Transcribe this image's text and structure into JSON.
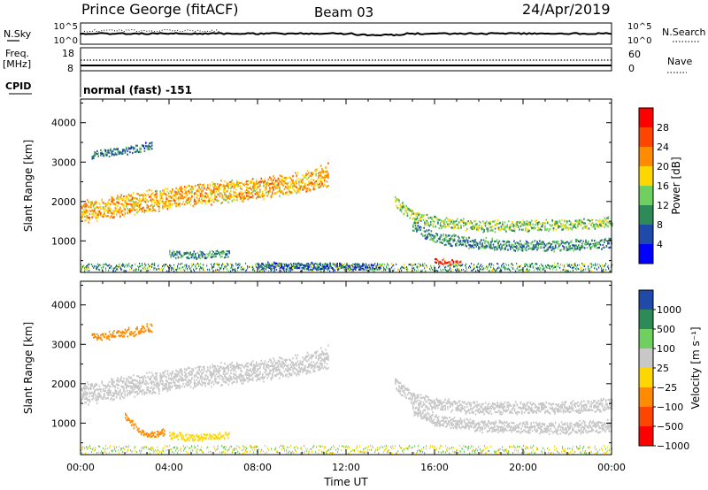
{
  "header": {
    "station": "Prince George (fitACF)",
    "beam": "Beam 03",
    "date": "24/Apr/2019"
  },
  "status_panels": {
    "nsky_label": "N.Sky",
    "nsky_ticks": [
      "10^5",
      "10^0"
    ],
    "nsearch_label": "N.Search",
    "nsearch_ticks": [
      "10^5",
      "10^0"
    ],
    "freq_label": "Freq.",
    "freq_unit": "[MHz]",
    "freq_ticks": [
      "18",
      "8"
    ],
    "nave_label": "Nave",
    "nave_ticks": [
      "60",
      "0"
    ],
    "cpid_label": "CPID",
    "cpid_text": "normal (fast) -151"
  },
  "chart_data": [
    {
      "type": "heatmap",
      "name": "power",
      "ylabel": "Slant Range [km]",
      "ylim": [
        200,
        4600
      ],
      "yticks": [
        1000,
        2000,
        3000,
        4000
      ],
      "xlim": [
        0,
        24
      ],
      "xticks": [
        "00:00",
        "04:00",
        "08:00",
        "12:00",
        "16:00",
        "20:00",
        "00:00"
      ],
      "colorbar": {
        "label": "Power [dB]",
        "ticks": [
          "28",
          "24",
          "20",
          "16",
          "12",
          "8",
          "4"
        ],
        "colors": [
          "#0000ff",
          "#1f4aa8",
          "#2e8b57",
          "#6fcf5f",
          "#ffd700",
          "#ff8c00",
          "#ff4500",
          "#ff0000"
        ]
      },
      "features": [
        {
          "kind": "band",
          "t": [
            0,
            2,
            4,
            6,
            8,
            10,
            11.2
          ],
          "r": [
            1750,
            1950,
            2100,
            2250,
            2350,
            2500,
            2700
          ],
          "width": 380,
          "level": 20
        },
        {
          "kind": "band",
          "t": [
            14.2,
            15,
            16,
            18,
            20,
            22,
            24
          ],
          "r": [
            2000,
            1650,
            1500,
            1400,
            1400,
            1420,
            1500
          ],
          "width": 200,
          "level": 14
        },
        {
          "kind": "band",
          "t": [
            15,
            16,
            18,
            20,
            22,
            24
          ],
          "r": [
            1400,
            1100,
            950,
            900,
            900,
            950
          ],
          "width": 200,
          "level": 10
        },
        {
          "kind": "band",
          "t": [
            0.5,
            1.5,
            2.5,
            3.2
          ],
          "r": [
            3200,
            3280,
            3350,
            3450
          ],
          "width": 150,
          "level": 8
        },
        {
          "kind": "band",
          "t": [
            4,
            5,
            6,
            6.7
          ],
          "r": [
            700,
            650,
            680,
            700
          ],
          "width": 130,
          "level": 10
        },
        {
          "kind": "band",
          "t": [
            8,
            10,
            12,
            13.5
          ],
          "r": [
            400,
            380,
            360,
            350
          ],
          "width": 120,
          "level": 6
        },
        {
          "kind": "band",
          "t": [
            16,
            16.5,
            17.2
          ],
          "r": [
            520,
            480,
            440
          ],
          "width": 110,
          "level": 28
        }
      ]
    },
    {
      "type": "heatmap",
      "name": "velocity",
      "ylabel": "Slant Range [km]",
      "ylim": [
        200,
        4600
      ],
      "yticks": [
        1000,
        2000,
        3000,
        4000
      ],
      "xlim": [
        0,
        24
      ],
      "xlabel": "Time UT",
      "xticks": [
        "00:00",
        "04:00",
        "08:00",
        "12:00",
        "16:00",
        "20:00",
        "00:00"
      ],
      "colorbar": {
        "label": "Velocity [m s⁻¹]",
        "ticks": [
          "1000",
          "500",
          "100",
          "25",
          "−25",
          "−100",
          "−500",
          "−1000"
        ],
        "colors": [
          "#1f4aa8",
          "#2e8b57",
          "#6fcf5f",
          "#c8c8c8",
          "#ffd700",
          "#ff8c00",
          "#ff4500",
          "#ff0000"
        ]
      },
      "features": [
        {
          "kind": "band",
          "t": [
            0,
            2,
            4,
            6,
            8,
            10,
            11.2
          ],
          "r": [
            1750,
            1950,
            2100,
            2250,
            2350,
            2500,
            2700
          ],
          "width": 380,
          "velocity": 0
        },
        {
          "kind": "band",
          "t": [
            14.2,
            15,
            16,
            18,
            20,
            22,
            24
          ],
          "r": [
            2000,
            1650,
            1500,
            1400,
            1400,
            1420,
            1500
          ],
          "width": 220,
          "velocity": 0
        },
        {
          "kind": "band",
          "t": [
            15,
            16,
            18,
            20,
            22,
            24
          ],
          "r": [
            1400,
            1100,
            950,
            900,
            900,
            950
          ],
          "width": 220,
          "velocity": 0
        },
        {
          "kind": "band",
          "t": [
            0.5,
            1.5,
            2.5,
            3.2
          ],
          "r": [
            3200,
            3280,
            3350,
            3450
          ],
          "width": 150,
          "velocity": -200
        },
        {
          "kind": "band",
          "t": [
            4,
            5,
            6,
            6.7
          ],
          "r": [
            700,
            650,
            680,
            700
          ],
          "width": 130,
          "velocity": -60
        },
        {
          "kind": "band",
          "t": [
            2,
            2.5,
            3,
            3.8
          ],
          "r": [
            1200,
            900,
            700,
            800
          ],
          "width": 120,
          "velocity": -300
        }
      ]
    }
  ]
}
